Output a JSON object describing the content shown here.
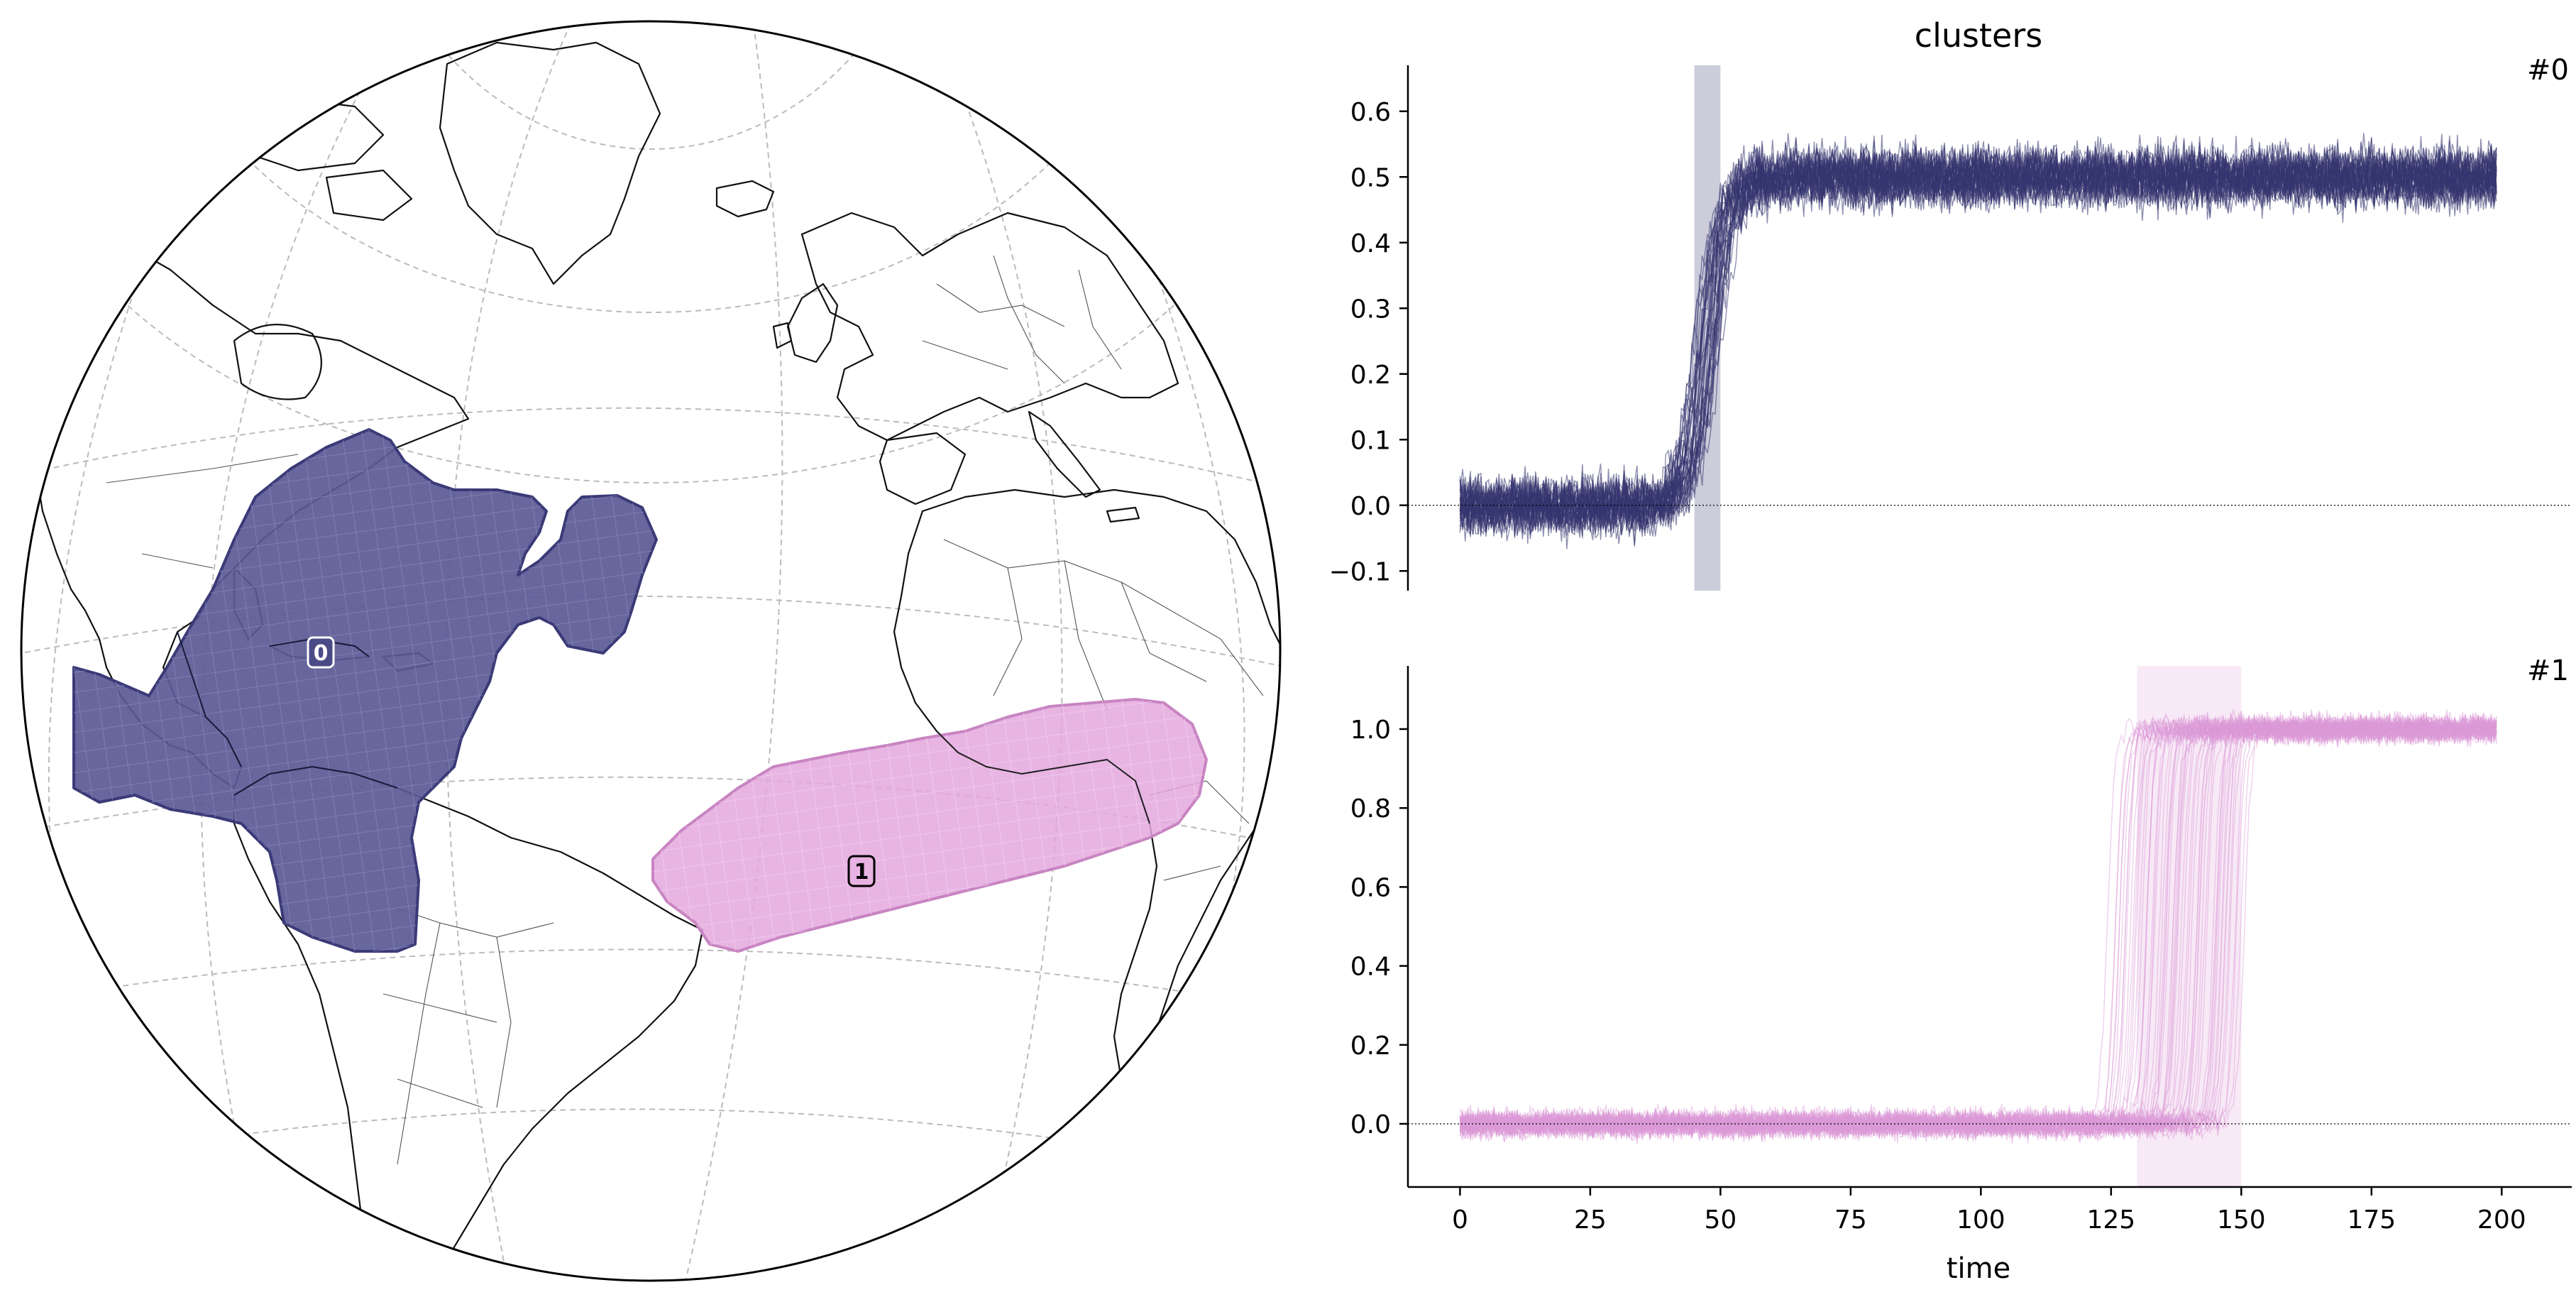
{
  "chart_data": [
    {
      "type": "map",
      "projection": "orthographic",
      "regions": [
        {
          "id": "0",
          "label": "0",
          "color": "#3b3b7a"
        },
        {
          "id": "1",
          "label": "1",
          "color": "#e0a0d8"
        }
      ]
    },
    {
      "type": "line",
      "title": "clusters",
      "panel_label": "#0",
      "color": "#353570",
      "xlim": [
        -10,
        208
      ],
      "ylim": [
        -0.13,
        0.67
      ],
      "yticks": [
        -0.1,
        0.0,
        0.1,
        0.2,
        0.3,
        0.4,
        0.5,
        0.6
      ],
      "ytick_labels": [
        "−0.1",
        "0.0",
        "0.1",
        "0.2",
        "0.3",
        "0.4",
        "0.5",
        "0.6"
      ],
      "baseline": 0.0,
      "series_summary": {
        "level_before": 0.0,
        "level_after": 0.5,
        "transition_x": [
          45,
          50
        ],
        "x_range": [
          0,
          199
        ],
        "noise": 0.04
      },
      "highlight_x": [
        45,
        50
      ]
    },
    {
      "type": "line",
      "panel_label": "#1",
      "color": "#dc9ad6",
      "xlim": [
        -10,
        208
      ],
      "ylim": [
        -0.16,
        1.16
      ],
      "yticks": [
        0.0,
        0.2,
        0.4,
        0.6,
        0.8,
        1.0
      ],
      "ytick_labels": [
        "0.0",
        "0.2",
        "0.4",
        "0.6",
        "0.8",
        "1.0"
      ],
      "baseline": 0.0,
      "series_summary": {
        "level_before": 0.0,
        "level_after": 1.0,
        "transition_x": [
          125,
          150
        ],
        "x_range": [
          0,
          199
        ],
        "noise": 0.03
      },
      "highlight_x": [
        130,
        150
      ],
      "xticks": [
        0,
        25,
        50,
        75,
        100,
        125,
        150,
        175,
        200
      ],
      "xtick_labels": [
        "0",
        "25",
        "50",
        "75",
        "100",
        "125",
        "150",
        "175",
        "200"
      ],
      "xlabel": "time"
    }
  ]
}
